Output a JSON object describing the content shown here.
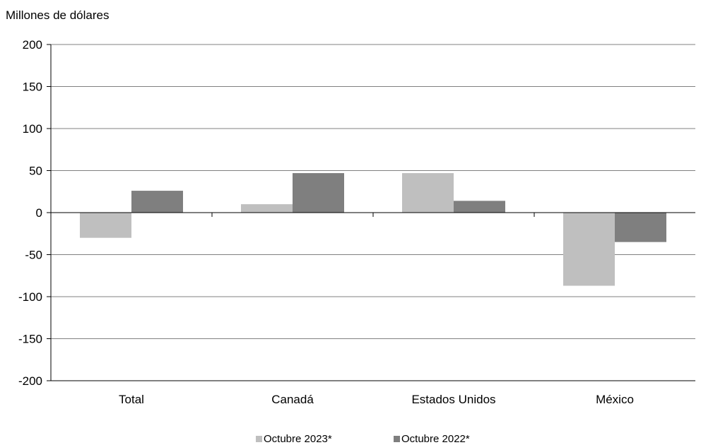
{
  "chart_data": {
    "type": "bar",
    "ylabel": "Millones de dólares",
    "categories": [
      "Total",
      "Canadá",
      "Estados Unidos",
      "México"
    ],
    "series": [
      {
        "name": "Octubre 2023*",
        "color": "#bfbfbf",
        "values": [
          -30,
          10,
          47,
          -87
        ]
      },
      {
        "name": "Octubre 2022*",
        "color": "#7f7f7f",
        "values": [
          26,
          47,
          14,
          -35
        ]
      }
    ],
    "ylim": [
      -200,
      200
    ],
    "yticks": [
      200,
      150,
      100,
      50,
      0,
      -50,
      -100,
      -150,
      -200
    ],
    "grid": true,
    "legend": "bottom"
  }
}
